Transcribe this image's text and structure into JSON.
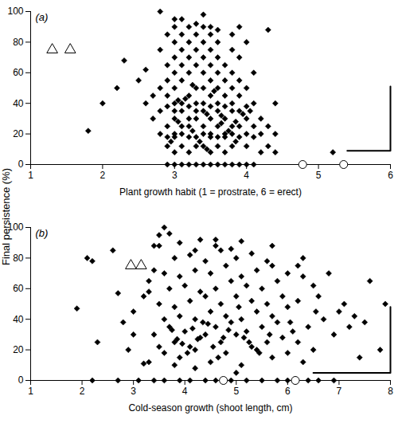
{
  "chart_data": [
    {
      "type": "scatter",
      "panel_label": "(a)",
      "x_label": "Plant growth habit (1 = prostrate, 6 = erect)",
      "y_label": "Final persistence (%)",
      "xlim": [
        1,
        6
      ],
      "xticks": [
        1,
        2,
        3,
        4,
        5,
        6
      ],
      "ylim": [
        0,
        100
      ],
      "yticks": [
        0,
        20,
        40,
        60,
        80,
        100
      ],
      "lsd_bar": {
        "x": [
          5.4,
          6
        ],
        "y": [
          9,
          51
        ]
      },
      "series": [
        {
          "color": "#000000",
          "marker": "diamond",
          "x": [
            1.8,
            2.0,
            2.2,
            2.3,
            2.5,
            2.6,
            2.7,
            2.8,
            3.1,
            4.3,
            5.2,
            2.9,
            3.0,
            3.1,
            3.2,
            3.3,
            3.4,
            3.5,
            3.6,
            3.7,
            3.8,
            3.9,
            4.0,
            4.1,
            3.0,
            3.2,
            3.5,
            3.7,
            4.2,
            2.9,
            3.1,
            3.3,
            3.4,
            3.6,
            3.8,
            4.0,
            4.3,
            2.9,
            3.0,
            3.2,
            3.3,
            3.5,
            3.6,
            3.7,
            3.9,
            4.1,
            2.8,
            3.0,
            3.1,
            3.4,
            3.5,
            3.7,
            3.8,
            4.0,
            4.2,
            2.9,
            3.1,
            3.2,
            3.4,
            3.6,
            3.8,
            3.9,
            4.1,
            2.7,
            3.0,
            3.2,
            3.3,
            3.5,
            3.7,
            4.0,
            4.2,
            2.8,
            3.0,
            3.1,
            3.3,
            3.4,
            3.6,
            3.8,
            3.9,
            2.9,
            3.2,
            3.5,
            3.7,
            4.0,
            2.6,
            3.0,
            3.1,
            3.3,
            3.4,
            3.6,
            3.8,
            4.1,
            2.9,
            3.2,
            3.5,
            3.7,
            3.9,
            2.8,
            3.0,
            3.3,
            3.4,
            3.6,
            3.8,
            4.0,
            2.9,
            3.1,
            3.5,
            3.7,
            3.9,
            3.0,
            3.2,
            3.4,
            3.6,
            3.8,
            4.1,
            2.9,
            3.1,
            3.3,
            3.5,
            3.7,
            3.0,
            3.2,
            3.4,
            3.6,
            3.9,
            2.8,
            3.1,
            3.3,
            3.5,
            3.8,
            3.0,
            3.2,
            3.4,
            3.6,
            4.0,
            2.9,
            3.1,
            3.3,
            3.5,
            3.8,
            3.0,
            3.2,
            3.4,
            3.5,
            3.9,
            3.3,
            3.6,
            3.0,
            3.4,
            4.4,
            4.4,
            4.3,
            4.4,
            3.05,
            3.25,
            3.45,
            3.65,
            3.85,
            3.15,
            3.55,
            3.35,
            3.75,
            3.95,
            2.95,
            3.05,
            3.45,
            3.25,
            3.65,
            3.85,
            4.05
          ],
          "values": [
            22,
            40,
            50,
            68,
            55,
            62,
            45,
            100,
            95,
            88,
            8,
            0,
            0,
            0,
            0,
            0,
            0,
            0,
            0,
            0,
            0,
            0,
            0,
            0,
            8,
            8,
            8,
            8,
            8,
            12,
            12,
            12,
            12,
            12,
            12,
            12,
            12,
            18,
            18,
            18,
            18,
            18,
            18,
            18,
            18,
            18,
            20,
            20,
            20,
            20,
            20,
            20,
            20,
            20,
            20,
            25,
            25,
            25,
            25,
            25,
            25,
            25,
            25,
            30,
            30,
            30,
            30,
            30,
            30,
            30,
            30,
            35,
            35,
            35,
            35,
            35,
            35,
            35,
            35,
            38,
            38,
            38,
            38,
            38,
            40,
            40,
            40,
            40,
            40,
            40,
            40,
            40,
            45,
            45,
            45,
            45,
            45,
            50,
            50,
            50,
            50,
            50,
            50,
            50,
            55,
            55,
            55,
            55,
            55,
            60,
            60,
            60,
            60,
            60,
            60,
            65,
            65,
            65,
            65,
            65,
            70,
            70,
            70,
            70,
            70,
            75,
            75,
            75,
            75,
            75,
            80,
            80,
            80,
            80,
            80,
            85,
            85,
            85,
            85,
            85,
            90,
            90,
            90,
            90,
            90,
            92,
            88,
            95,
            98,
            20,
            8,
            25,
            40,
            28,
            22,
            33,
            27,
            15,
            43,
            48,
            15,
            22,
            33,
            15,
            42,
            10,
            52,
            32,
            28,
            35
          ]
        },
        {
          "color": "#000000",
          "marker": "triangle-open",
          "x": [
            1.3,
            1.55
          ],
          "values": [
            75,
            75
          ]
        },
        {
          "color": "#000000",
          "marker": "circle-open",
          "x": [
            4.78,
            5.35
          ],
          "values": [
            0,
            0
          ]
        }
      ]
    },
    {
      "type": "scatter",
      "panel_label": "(b)",
      "x_label": "Cold-season growth (shoot length, cm)",
      "xlim": [
        1,
        8
      ],
      "xticks": [
        1,
        2,
        3,
        4,
        5,
        6,
        7,
        8
      ],
      "ylim": [
        0,
        100
      ],
      "yticks": [
        0,
        20,
        40,
        60,
        80,
        100
      ],
      "lsd_bar": {
        "x": [
          6.5,
          8
        ],
        "y": [
          5,
          48
        ]
      },
      "series": [
        {
          "color": "#000000",
          "marker": "diamond",
          "x": [
            1.9,
            2.1,
            2.2,
            2.3,
            2.6,
            2.7,
            2.8,
            3.0,
            3.2,
            3.5,
            3.6,
            3.7,
            3.4,
            4.3,
            4.6,
            5.1,
            5.7,
            6.3,
            6.8,
            7.6,
            7.9,
            7.0,
            7.3,
            7.5,
            7.2,
            6.9,
            6.6,
            6.2,
            7.8,
            7.4,
            2.2,
            2.7,
            3.1,
            3.4,
            3.6,
            3.9,
            4.1,
            4.4,
            4.6,
            4.9,
            5.2,
            5.5,
            5.8,
            6.0,
            6.4,
            6.6,
            6.9,
            3.8,
            4.2,
            5.0,
            3.3,
            3.6,
            3.9,
            4.2,
            4.5,
            4.8,
            5.1,
            5.4,
            5.7,
            6.0,
            6.3,
            3.5,
            3.8,
            4.1,
            4.3,
            4.7,
            5.0,
            5.3,
            5.6,
            5.9,
            6.2,
            6.5,
            3.4,
            3.7,
            4.0,
            4.4,
            4.6,
            4.9,
            5.2,
            5.5,
            5.8,
            6.1,
            6.4,
            3.6,
            3.9,
            4.2,
            4.5,
            4.8,
            5.1,
            5.4,
            5.7,
            6.0,
            6.7,
            3.5,
            3.8,
            4.1,
            4.4,
            4.7,
            5.0,
            5.3,
            5.6,
            5.9,
            6.2,
            3.3,
            3.7,
            4.0,
            4.3,
            4.6,
            4.9,
            5.2,
            5.5,
            5.8,
            6.5,
            3.6,
            3.9,
            4.2,
            4.5,
            4.8,
            5.1,
            5.4,
            5.7,
            6.0,
            6.3,
            3.8,
            4.1,
            4.4,
            4.7,
            5.0,
            5.3,
            5.6,
            3.5,
            3.9,
            4.2,
            4.6,
            4.9,
            3.3,
            3.0,
            2.9,
            3.2,
            3.4,
            4.05,
            4.25,
            4.55,
            4.85,
            5.15,
            3.75,
            3.95,
            4.35,
            4.65,
            5.45,
            5.05,
            4.15,
            4.45,
            4.75,
            3.85,
            5.25,
            5.65,
            6.05,
            6.55,
            7.1
          ],
          "values": [
            47,
            80,
            78,
            25,
            85,
            57,
            38,
            45,
            11,
            95,
            100,
            96,
            88,
            92,
            92,
            91,
            88,
            80,
            70,
            65,
            50,
            45,
            42,
            38,
            35,
            30,
            55,
            75,
            20,
            15,
            0,
            0,
            0,
            0,
            0,
            0,
            0,
            0,
            0,
            0,
            0,
            0,
            0,
            0,
            0,
            0,
            0,
            10,
            8,
            5,
            12,
            18,
            15,
            20,
            12,
            18,
            10,
            20,
            15,
            18,
            12,
            22,
            25,
            22,
            28,
            25,
            30,
            22,
            25,
            28,
            25,
            20,
            30,
            35,
            32,
            30,
            35,
            38,
            32,
            35,
            38,
            32,
            35,
            40,
            42,
            40,
            45,
            42,
            40,
            45,
            42,
            48,
            40,
            50,
            48,
            52,
            55,
            50,
            55,
            52,
            50,
            55,
            52,
            58,
            60,
            62,
            58,
            60,
            65,
            62,
            60,
            65,
            62,
            70,
            68,
            72,
            70,
            75,
            68,
            72,
            75,
            70,
            68,
            80,
            82,
            78,
            85,
            80,
            83,
            78,
            88,
            90,
            85,
            88,
            86,
            65,
            30,
            20,
            55,
            72,
            18,
            27,
            22,
            33,
            28,
            33,
            24,
            38,
            15,
            18,
            48,
            34,
            37,
            28,
            27,
            25,
            30,
            38,
            45,
            50
          ]
        },
        {
          "color": "#000000",
          "marker": "triangle-open",
          "x": [
            2.95,
            3.15
          ],
          "values": [
            75,
            75
          ]
        },
        {
          "color": "#000000",
          "marker": "circle-open",
          "x": [
            4.75,
            6.15
          ],
          "values": [
            0,
            0
          ]
        }
      ]
    }
  ]
}
